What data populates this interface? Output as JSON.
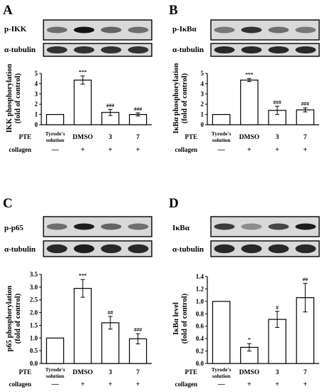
{
  "panels": [
    {
      "label": "A",
      "blot_labels": [
        "p-IKK",
        "α-tubulin"
      ],
      "ylabel": [
        "IKK phosphorylation",
        "(fold of control)"
      ],
      "row_labels": {
        "pte": "PTE",
        "collagen": "collagen"
      },
      "cat_labels": [
        "Tyrode's\nsolution",
        "DMSO",
        "3",
        "7"
      ],
      "collagen_marks": [
        "—",
        "+",
        "+",
        "+"
      ],
      "yticks": [
        "0",
        "1",
        "2",
        "3",
        "4",
        "5"
      ]
    },
    {
      "label": "B",
      "blot_labels": [
        "p-IκBα",
        "α-tubulin"
      ],
      "ylabel": [
        "IκBα phosphorylation",
        "(fold of control)"
      ],
      "row_labels": {
        "pte": "PTE",
        "collagen": "collagen"
      },
      "cat_labels": [
        "Tyrode's\nsolution",
        "DMSO",
        "3",
        "7"
      ],
      "collagen_marks": [
        "—",
        "+",
        "+",
        "+"
      ],
      "yticks": [
        "0",
        "1",
        "2",
        "3",
        "4",
        "5"
      ]
    },
    {
      "label": "C",
      "blot_labels": [
        "p-p65",
        "α-tubulin"
      ],
      "ylabel": [
        "p65 phosphorylation",
        "(fold of control)"
      ],
      "row_labels": {
        "pte": "PTE",
        "collagen": "collagen"
      },
      "cat_labels": [
        "Tyrode's\nsolution",
        "DMSO",
        "3",
        "7"
      ],
      "collagen_marks": [
        "—",
        "+",
        "+",
        "+"
      ],
      "yticks": [
        "0.0",
        "0.5",
        "1.0",
        "1.5",
        "2.0",
        "2.5",
        "3.0",
        "3.5"
      ]
    },
    {
      "label": "D",
      "blot_labels": [
        "IκBα",
        "α-tubulin"
      ],
      "ylabel": [
        "IκBα level",
        "(fold of control)"
      ],
      "row_labels": {
        "pte": "PTE",
        "collagen": "collagen"
      },
      "cat_labels": [
        "Tyrode's\nsolution",
        "DMSO",
        "3",
        "7"
      ],
      "collagen_marks": [
        "—",
        "+",
        "+",
        "+"
      ],
      "yticks": [
        "0.0",
        "0.2",
        "0.4",
        "0.6",
        "0.8",
        "1.0",
        "1.2",
        "1.4"
      ]
    }
  ],
  "chart_data": [
    {
      "type": "bar",
      "categories": [
        "Tyrode's solution",
        "DMSO",
        "3",
        "7"
      ],
      "values": [
        1.0,
        4.35,
        1.2,
        1.0
      ],
      "errors": [
        0,
        0.4,
        0.3,
        0.15
      ],
      "significance": [
        "",
        "***",
        "###",
        "###"
      ],
      "ylabel": "IKK phosphorylation (fold of control)",
      "ylim": [
        0,
        5
      ]
    },
    {
      "type": "bar",
      "categories": [
        "Tyrode's solution",
        "DMSO",
        "3",
        "7"
      ],
      "values": [
        1.0,
        4.35,
        1.4,
        1.45
      ],
      "errors": [
        0,
        0.15,
        0.4,
        0.2
      ],
      "significance": [
        "",
        "***",
        "###",
        "###"
      ],
      "ylabel": "IκBα phosphorylation (fold of control)",
      "ylim": [
        0,
        5
      ]
    },
    {
      "type": "bar",
      "categories": [
        "Tyrode's solution",
        "DMSO",
        "3",
        "7"
      ],
      "values": [
        1.0,
        2.95,
        1.6,
        0.97
      ],
      "errors": [
        0,
        0.35,
        0.25,
        0.2
      ],
      "significance": [
        "",
        "***",
        "##",
        "###"
      ],
      "ylabel": "p65 phosphorylation (fold of control)",
      "ylim": [
        0,
        3.5
      ]
    },
    {
      "type": "bar",
      "categories": [
        "Tyrode's solution",
        "DMSO",
        "3",
        "7"
      ],
      "values": [
        1.0,
        0.26,
        0.71,
        1.06
      ],
      "errors": [
        0,
        0.06,
        0.13,
        0.23
      ],
      "significance": [
        "",
        "*",
        "#",
        "##"
      ],
      "ylabel": "IκBα level (fold of control)",
      "ylim": [
        0,
        1.4
      ]
    }
  ]
}
